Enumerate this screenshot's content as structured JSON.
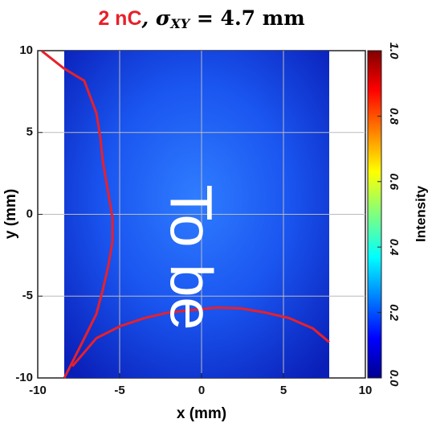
{
  "chart_data": {
    "type": "heatmap",
    "title": {
      "highlight": "2 nC",
      "rest": ", σ",
      "subscript": "XY",
      "tail": " = 4.7 mm"
    },
    "xlabel": "x (mm)",
    "ylabel": "y (mm)",
    "xlim": [
      -10,
      10
    ],
    "ylim": [
      -10,
      10
    ],
    "xticks": [
      -10,
      -5,
      0,
      5,
      10
    ],
    "yticks": [
      -10,
      -5,
      0,
      5,
      10
    ],
    "grid": true,
    "colorbar": {
      "label": "Intensity",
      "lim": [
        0,
        1
      ],
      "ticks": [
        {
          "value": 0,
          "label": "0.0"
        },
        {
          "value": 0.2,
          "label": "0.2"
        },
        {
          "value": 0.4,
          "label": "0.4"
        },
        {
          "value": 0.6,
          "label": "0.6"
        },
        {
          "value": 0.8,
          "label": "0.8"
        },
        {
          "value": 1,
          "label": "1.0"
        }
      ]
    },
    "profiles": [
      {
        "color": "#e8202a",
        "x": [
          -9.75,
          -8.38,
          -7.16,
          -6.42,
          -6.18,
          -6.03,
          -5.69,
          -5.44,
          -5.44,
          -5.69,
          -6.03,
          -6.42,
          -6.91,
          -7.4,
          -7.89,
          -8.38
        ],
        "y": [
          9.98,
          8.9,
          8.16,
          6.19,
          4.72,
          3.24,
          1.28,
          -0.2,
          -1.67,
          -3.14,
          -4.62,
          -6.09,
          -7.08,
          -8.06,
          -9.04,
          -10
        ]
      },
      {
        "color": "#e8202a",
        "x": [
          -7.89,
          -6.42,
          -4.95,
          -3.48,
          -2.01,
          -0.54,
          0.93,
          2.4,
          3.87,
          5.34,
          6.81,
          7.79
        ],
        "y": [
          -9.29,
          -7.57,
          -6.83,
          -6.34,
          -6.0,
          -5.85,
          -5.7,
          -5.75,
          -6.0,
          -6.34,
          -6.98,
          -7.81
        ]
      }
    ],
    "overlay_text": "To be"
  }
}
